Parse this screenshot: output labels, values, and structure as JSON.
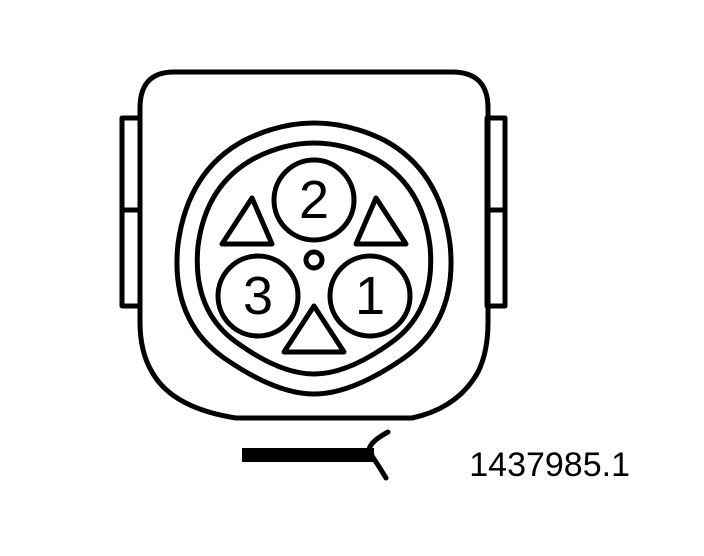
{
  "connector": {
    "pins": [
      {
        "id": "pin-1",
        "label": "1"
      },
      {
        "id": "pin-2",
        "label": "2"
      },
      {
        "id": "pin-3",
        "label": "3"
      }
    ]
  },
  "reference_number": "1437985.1",
  "colors": {
    "line": "#000000",
    "background": "#ffffff"
  }
}
